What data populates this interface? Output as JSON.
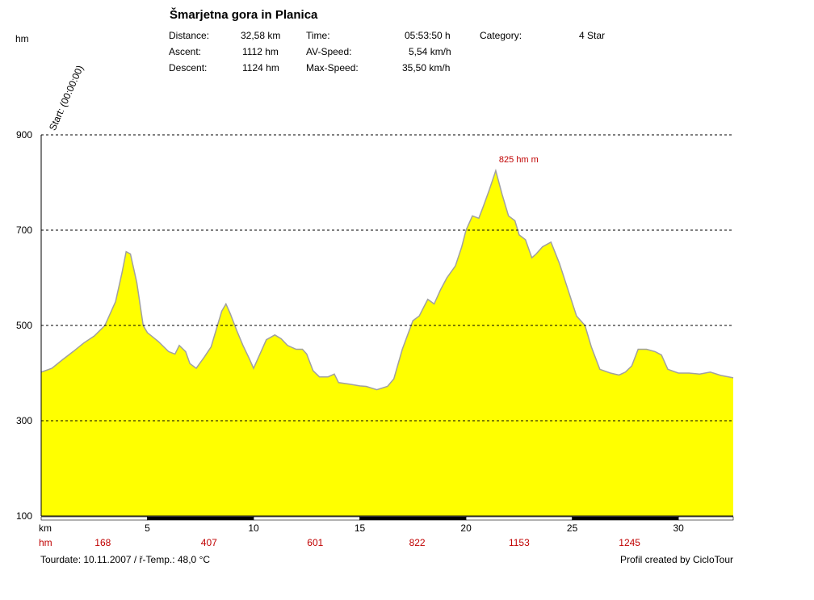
{
  "title": "Šmarjetna gora in Planica",
  "stats": {
    "distance_label": "Distance:",
    "distance_value": "32,58 km",
    "ascent_label": "Ascent:",
    "ascent_value": "1112 hm",
    "descent_label": "Descent:",
    "descent_value": "1124 hm",
    "time_label": "Time:",
    "time_value": "05:53:50 h",
    "avspeed_label": "AV-Speed:",
    "avspeed_value": "5,54 km/h",
    "maxspeed_label": "Max-Speed:",
    "maxspeed_value": "35,50 km/h",
    "category_label": "Category:",
    "category_value": "4 Star"
  },
  "start_label": "Start: (00:00:00)",
  "peak_label": "825 hm m",
  "footer": {
    "tourdate": "Tourdate: 10.11.2007  /  ř-Temp.: 48,0 °C",
    "credit": "Profil created by CicloTour"
  },
  "chart_data": {
    "type": "area",
    "title": "Šmarjetna gora in Planica",
    "ylabel": "hm",
    "xlabel": "km",
    "xlim": [
      0,
      32.58
    ],
    "ylim": [
      100,
      900
    ],
    "yticks": [
      100,
      300,
      500,
      700,
      900
    ],
    "yticks_dashed": [
      300,
      500,
      700,
      900
    ],
    "xticks": [
      5,
      10,
      15,
      20,
      25,
      30
    ],
    "hm_row_label": "hm",
    "hm_row": [
      {
        "km": 2.9,
        "value": "168"
      },
      {
        "km": 7.9,
        "value": "407"
      },
      {
        "km": 12.9,
        "value": "601"
      },
      {
        "km": 17.7,
        "value": "822"
      },
      {
        "km": 22.5,
        "value": "1153"
      },
      {
        "km": 27.7,
        "value": "1245"
      }
    ],
    "x": [
      0,
      0.5,
      1.0,
      1.5,
      2.0,
      2.5,
      3.0,
      3.5,
      3.8,
      4.0,
      4.2,
      4.5,
      4.8,
      5.0,
      5.5,
      6.0,
      6.3,
      6.5,
      6.8,
      7.0,
      7.3,
      7.7,
      8.0,
      8.3,
      8.5,
      8.7,
      8.9,
      9.2,
      9.5,
      9.8,
      10.0,
      10.3,
      10.6,
      11.0,
      11.3,
      11.6,
      12.0,
      12.3,
      12.5,
      12.8,
      13.1,
      13.5,
      13.8,
      14.0,
      14.5,
      15.0,
      15.3,
      15.8,
      16.3,
      16.6,
      17.0,
      17.5,
      17.8,
      18.2,
      18.5,
      18.8,
      19.1,
      19.5,
      19.8,
      20.0,
      20.3,
      20.6,
      20.8,
      21.1,
      21.4,
      21.7,
      22.0,
      22.3,
      22.5,
      22.8,
      23.1,
      23.3,
      23.6,
      24.0,
      24.4,
      24.8,
      25.2,
      25.6,
      25.9,
      26.3,
      26.8,
      27.2,
      27.5,
      27.8,
      28.1,
      28.5,
      28.9,
      29.2,
      29.5,
      30.0,
      30.5,
      31.0,
      31.5,
      32.0,
      32.58
    ],
    "y": [
      402,
      410,
      428,
      445,
      463,
      478,
      500,
      550,
      610,
      655,
      650,
      590,
      500,
      485,
      467,
      445,
      440,
      458,
      445,
      420,
      410,
      435,
      455,
      500,
      530,
      545,
      525,
      490,
      458,
      430,
      410,
      440,
      470,
      480,
      472,
      458,
      450,
      450,
      440,
      405,
      392,
      392,
      398,
      380,
      377,
      373,
      372,
      365,
      372,
      388,
      450,
      510,
      520,
      555,
      545,
      575,
      600,
      625,
      665,
      700,
      730,
      725,
      748,
      785,
      825,
      775,
      730,
      720,
      690,
      680,
      642,
      650,
      665,
      675,
      630,
      575,
      520,
      500,
      455,
      408,
      400,
      396,
      402,
      415,
      450,
      450,
      445,
      438,
      408,
      400,
      400,
      398,
      402,
      395,
      390
    ]
  }
}
